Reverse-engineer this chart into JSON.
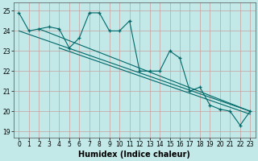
{
  "xlabel": "Humidex (Indice chaleur)",
  "background_color": "#c2e8e8",
  "line_color": "#006868",
  "xlim": [
    -0.5,
    23.5
  ],
  "ylim": [
    18.7,
    25.4
  ],
  "yticks": [
    19,
    20,
    21,
    22,
    23,
    24,
    25
  ],
  "xticks": [
    0,
    1,
    2,
    3,
    4,
    5,
    6,
    7,
    8,
    9,
    10,
    11,
    12,
    13,
    14,
    15,
    16,
    17,
    18,
    19,
    20,
    21,
    22,
    23
  ],
  "xtick_labels": [
    "0",
    "1",
    "2",
    "3",
    "4",
    "5",
    "6",
    "7",
    "8",
    "9",
    "10",
    "11",
    "12",
    "13",
    "14",
    "15",
    "16",
    "17",
    "18",
    "19",
    "20",
    "21",
    "22",
    "23"
  ],
  "series1": [
    24.9,
    24.0,
    24.1,
    24.2,
    24.1,
    23.15,
    23.65,
    24.9,
    24.9,
    24.0,
    24.0,
    24.5,
    22.0,
    22.0,
    22.0,
    23.0,
    22.65,
    21.0,
    21.2,
    20.3,
    20.1,
    20.0,
    19.3,
    20.0
  ],
  "regression_lines": [
    {
      "x0": 0,
      "y0": 24.0,
      "x1": 23,
      "y1": 20.0
    },
    {
      "x0": 2,
      "y0": 24.1,
      "x1": 23,
      "y1": 20.0
    },
    {
      "x0": 4,
      "y0": 23.15,
      "x1": 23,
      "y1": 19.85
    }
  ],
  "grid_color": "#c8a0a0",
  "xlabel_fontsize": 7,
  "tick_fontsize": 5.5
}
